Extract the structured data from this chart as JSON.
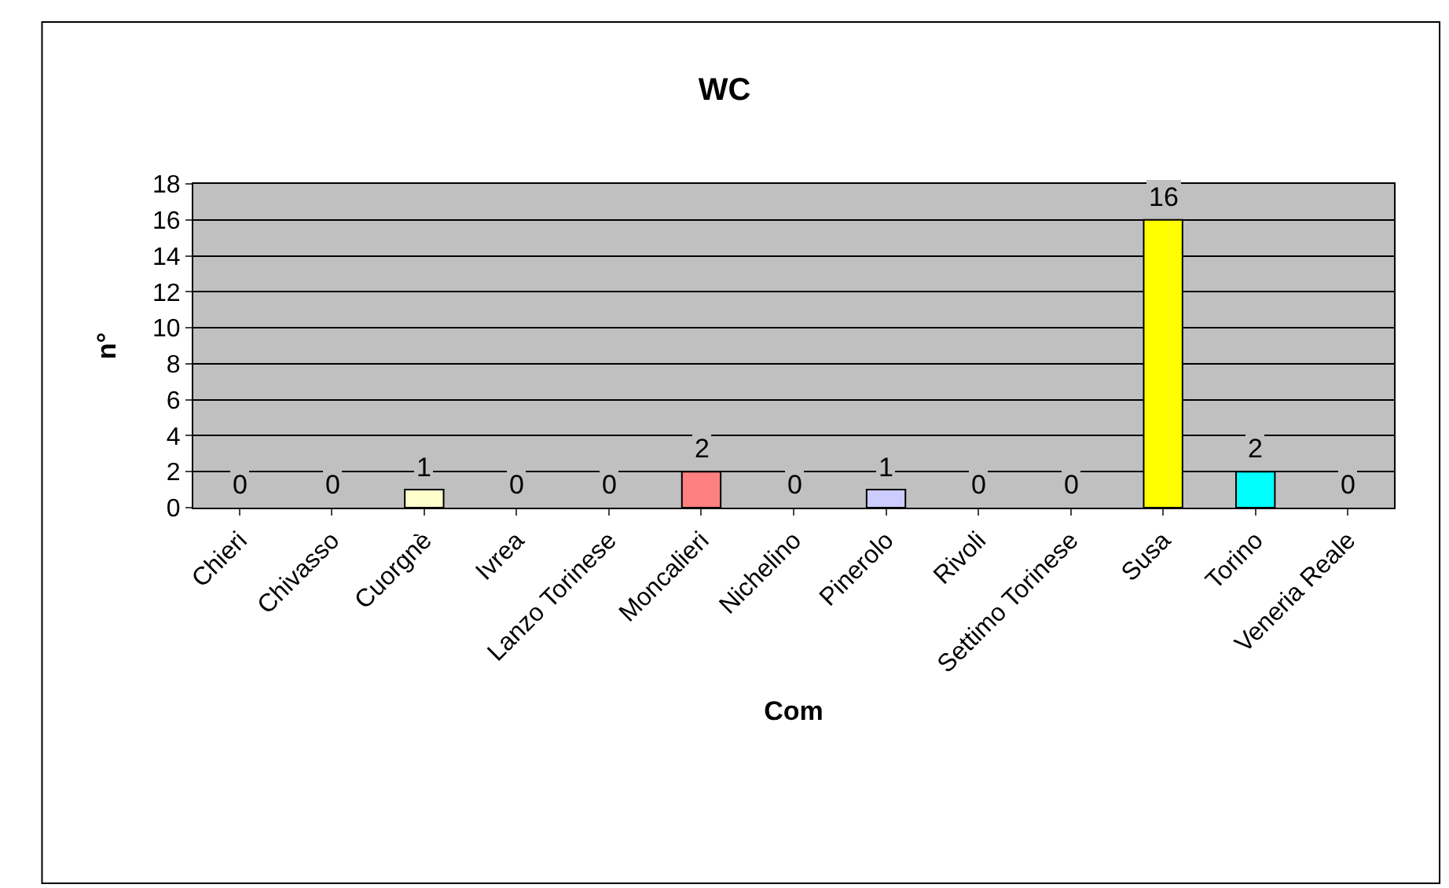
{
  "chart_data": {
    "type": "bar",
    "title": "WC",
    "xlabel": "Com",
    "ylabel": "n°",
    "categories": [
      "Chieri",
      "Chivasso",
      "Cuorgnè",
      "Ivrea",
      "Lanzo Torinese",
      "Moncalieri",
      "Nichelino",
      "Pinerolo",
      "Rivoli",
      "Settimo Torinese",
      "Susa",
      "Torino",
      "Veneria Reale"
    ],
    "values": [
      0,
      0,
      1,
      0,
      0,
      2,
      0,
      1,
      0,
      0,
      16,
      2,
      0
    ],
    "colors": [
      null,
      null,
      "#ffffcc",
      null,
      null,
      "#ff8080",
      null,
      "#ccccff",
      null,
      null,
      "#ffff00",
      "#00ffff",
      null
    ],
    "ylim": [
      0,
      18
    ],
    "yticks": [
      0,
      2,
      4,
      6,
      8,
      10,
      12,
      14,
      16,
      18
    ],
    "grid": "y",
    "data_labels": true,
    "legend": false
  }
}
